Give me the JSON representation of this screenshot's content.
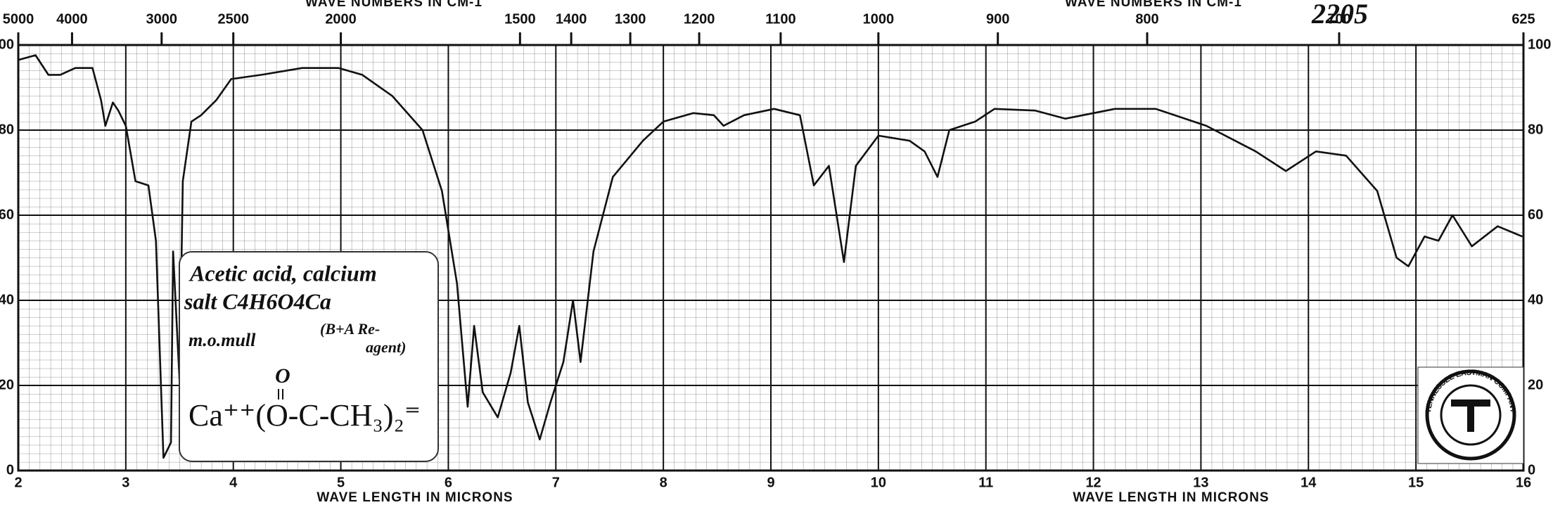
{
  "chart_data": {
    "type": "line",
    "x_label": "WAVE LENGTH IN MICRONS",
    "x2_label": "WAVE NUMBERS IN CM-1",
    "x": [
      2.0,
      2.16,
      2.28,
      2.39,
      2.53,
      2.69,
      2.77,
      2.81,
      2.88,
      2.93,
      3.0,
      3.09,
      3.21,
      3.28,
      3.35,
      3.42,
      3.44,
      3.5,
      3.53,
      3.61,
      3.7,
      3.84,
      3.98,
      4.26,
      4.64,
      4.98,
      5.2,
      5.48,
      5.76,
      5.94,
      6.08,
      6.18,
      6.24,
      6.32,
      6.46,
      6.58,
      6.66,
      6.74,
      6.85,
      6.95,
      7.07,
      7.16,
      7.23,
      7.35,
      7.53,
      7.81,
      8.0,
      8.28,
      8.47,
      8.56,
      8.75,
      9.03,
      9.27,
      9.4,
      9.54,
      9.68,
      9.79,
      10.0,
      10.29,
      10.43,
      10.55,
      10.66,
      10.9,
      11.08,
      11.46,
      11.74,
      12.2,
      12.58,
      13.05,
      13.51,
      13.79,
      14.07,
      14.35,
      14.64,
      14.82,
      14.93,
      15.08,
      15.21,
      15.34,
      15.52,
      15.76,
      15.99
    ],
    "values": [
      96.5,
      97.6,
      93,
      93,
      94.6,
      94.6,
      87,
      81,
      86.5,
      84.6,
      81,
      68,
      67,
      54,
      3,
      6.6,
      51.5,
      21,
      68,
      82,
      83.5,
      87,
      92,
      93,
      94.6,
      94.6,
      93,
      88,
      80,
      65.7,
      44,
      15,
      34,
      18.4,
      12.5,
      23,
      34,
      16,
      7.3,
      16,
      25.5,
      40,
      25.5,
      51.5,
      69,
      77.5,
      82,
      84,
      83.5,
      81,
      83.5,
      85,
      83.5,
      67,
      71.6,
      49,
      71.6,
      78.7,
      77.5,
      75,
      69,
      80,
      82,
      85,
      84.6,
      82.7,
      85,
      85,
      81,
      75,
      70.4,
      75,
      74,
      65.7,
      50,
      48,
      55,
      54,
      60,
      52.7,
      57.4,
      55
    ],
    "color": "#111111",
    "xlim": [
      2,
      16
    ],
    "ylim": [
      0,
      100
    ],
    "xticks": [
      2,
      3,
      4,
      5,
      6,
      7,
      8,
      9,
      10,
      11,
      12,
      13,
      14,
      15,
      16
    ],
    "yticks": [
      0,
      20,
      40,
      60,
      80,
      100
    ],
    "x2ticks": [
      5000,
      4000,
      3000,
      2500,
      2000,
      1500,
      1400,
      1300,
      1200,
      1100,
      1000,
      900,
      800,
      700,
      625
    ],
    "grid": true,
    "annotations": {
      "spectrum_number": "2205",
      "name_line1": "Acetic acid, calcium",
      "name_line2": "salt C4H6O4Ca",
      "method": "m.o.mull",
      "reagent_line1": "(B+A Re-",
      "reagent_line2": "agent)",
      "structure_keto": "O",
      "structure": "Ca⁺⁺(O-C-CH₃)₂⁼",
      "logo_text": "TENNESSEE EASTMAN COMPANY"
    }
  }
}
